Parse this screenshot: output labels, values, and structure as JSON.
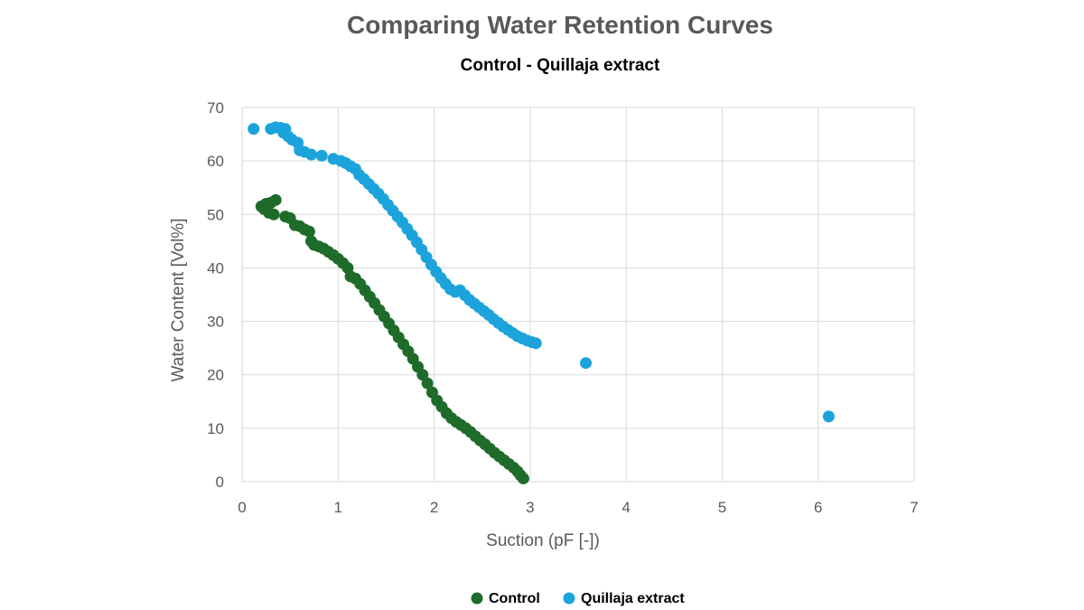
{
  "chart_data": {
    "type": "scatter",
    "title": "Comparing Water Retention Curves",
    "subtitle": "Control - Quillaja extract",
    "xlabel": "Suction (pF [-])",
    "ylabel": "Water Content [Vol%]",
    "xlim": [
      0,
      7
    ],
    "ylim": [
      0,
      70
    ],
    "xticks": [
      "0",
      "1",
      "2",
      "3",
      "4",
      "5",
      "6",
      "7"
    ],
    "yticks": [
      "0",
      "10",
      "20",
      "30",
      "40",
      "50",
      "60",
      "70"
    ],
    "grid": true,
    "legend_position": "bottom",
    "series": [
      {
        "name": "Control",
        "color": "#1e6b2a",
        "points": [
          [
            0.2,
            51.5
          ],
          [
            0.23,
            51.0
          ],
          [
            0.25,
            52.0
          ],
          [
            0.28,
            50.3
          ],
          [
            0.3,
            52.2
          ],
          [
            0.33,
            50.0
          ],
          [
            0.35,
            52.7
          ],
          [
            0.45,
            49.6
          ],
          [
            0.5,
            49.3
          ],
          [
            0.55,
            48.0
          ],
          [
            0.6,
            47.8
          ],
          [
            0.65,
            47.2
          ],
          [
            0.7,
            46.8
          ],
          [
            0.72,
            45.0
          ],
          [
            0.75,
            44.3
          ],
          [
            0.8,
            44.0
          ],
          [
            0.85,
            43.6
          ],
          [
            0.9,
            43.0
          ],
          [
            0.95,
            42.4
          ],
          [
            1.0,
            41.7
          ],
          [
            1.05,
            40.9
          ],
          [
            1.1,
            40.0
          ],
          [
            1.13,
            38.4
          ],
          [
            1.18,
            38.0
          ],
          [
            1.23,
            37.0
          ],
          [
            1.28,
            35.8
          ],
          [
            1.33,
            34.6
          ],
          [
            1.38,
            33.4
          ],
          [
            1.43,
            32.1
          ],
          [
            1.48,
            30.9
          ],
          [
            1.53,
            29.6
          ],
          [
            1.58,
            28.3
          ],
          [
            1.63,
            27.0
          ],
          [
            1.68,
            25.7
          ],
          [
            1.73,
            24.4
          ],
          [
            1.78,
            23.0
          ],
          [
            1.83,
            21.5
          ],
          [
            1.88,
            20.0
          ],
          [
            1.93,
            18.4
          ],
          [
            1.98,
            16.7
          ],
          [
            2.03,
            15.2
          ],
          [
            2.08,
            14.0
          ],
          [
            2.13,
            12.8
          ],
          [
            2.18,
            11.9
          ],
          [
            2.23,
            11.2
          ],
          [
            2.28,
            10.6
          ],
          [
            2.33,
            10.0
          ],
          [
            2.38,
            9.3
          ],
          [
            2.43,
            8.5
          ],
          [
            2.48,
            7.7
          ],
          [
            2.53,
            7.0
          ],
          [
            2.58,
            6.2
          ],
          [
            2.63,
            5.4
          ],
          [
            2.68,
            4.7
          ],
          [
            2.73,
            4.0
          ],
          [
            2.78,
            3.3
          ],
          [
            2.83,
            2.6
          ],
          [
            2.87,
            1.9
          ],
          [
            2.9,
            1.2
          ],
          [
            2.93,
            0.6
          ]
        ]
      },
      {
        "name": "Quillaja extract",
        "color": "#1ca3dc",
        "points": [
          [
            0.12,
            66.0
          ],
          [
            0.3,
            66.0
          ],
          [
            0.35,
            66.3
          ],
          [
            0.4,
            66.2
          ],
          [
            0.43,
            65.3
          ],
          [
            0.45,
            66.0
          ],
          [
            0.48,
            64.6
          ],
          [
            0.52,
            64.0
          ],
          [
            0.58,
            63.4
          ],
          [
            0.6,
            62.0
          ],
          [
            0.65,
            61.7
          ],
          [
            0.72,
            61.2
          ],
          [
            0.83,
            61.0
          ],
          [
            0.95,
            60.4
          ],
          [
            1.03,
            60.0
          ],
          [
            1.08,
            59.6
          ],
          [
            1.13,
            59.0
          ],
          [
            1.18,
            58.5
          ],
          [
            1.22,
            57.4
          ],
          [
            1.27,
            56.6
          ],
          [
            1.32,
            55.7
          ],
          [
            1.37,
            54.8
          ],
          [
            1.42,
            53.9
          ],
          [
            1.47,
            52.9
          ],
          [
            1.52,
            51.8
          ],
          [
            1.57,
            50.7
          ],
          [
            1.62,
            49.6
          ],
          [
            1.67,
            48.5
          ],
          [
            1.72,
            47.3
          ],
          [
            1.77,
            46.1
          ],
          [
            1.82,
            44.8
          ],
          [
            1.87,
            43.4
          ],
          [
            1.92,
            42.0
          ],
          [
            1.97,
            40.6
          ],
          [
            2.02,
            39.3
          ],
          [
            2.07,
            38.1
          ],
          [
            2.12,
            37.0
          ],
          [
            2.17,
            36.0
          ],
          [
            2.22,
            35.5
          ],
          [
            2.27,
            35.8
          ],
          [
            2.32,
            34.9
          ],
          [
            2.37,
            34.0
          ],
          [
            2.42,
            33.3
          ],
          [
            2.47,
            32.6
          ],
          [
            2.52,
            31.9
          ],
          [
            2.57,
            31.2
          ],
          [
            2.62,
            30.4
          ],
          [
            2.67,
            29.7
          ],
          [
            2.72,
            29.0
          ],
          [
            2.77,
            28.4
          ],
          [
            2.82,
            27.8
          ],
          [
            2.87,
            27.2
          ],
          [
            2.92,
            26.8
          ],
          [
            2.97,
            26.4
          ],
          [
            3.02,
            26.1
          ],
          [
            3.06,
            25.9
          ],
          [
            3.58,
            22.2
          ],
          [
            6.11,
            12.2
          ]
        ]
      }
    ]
  }
}
